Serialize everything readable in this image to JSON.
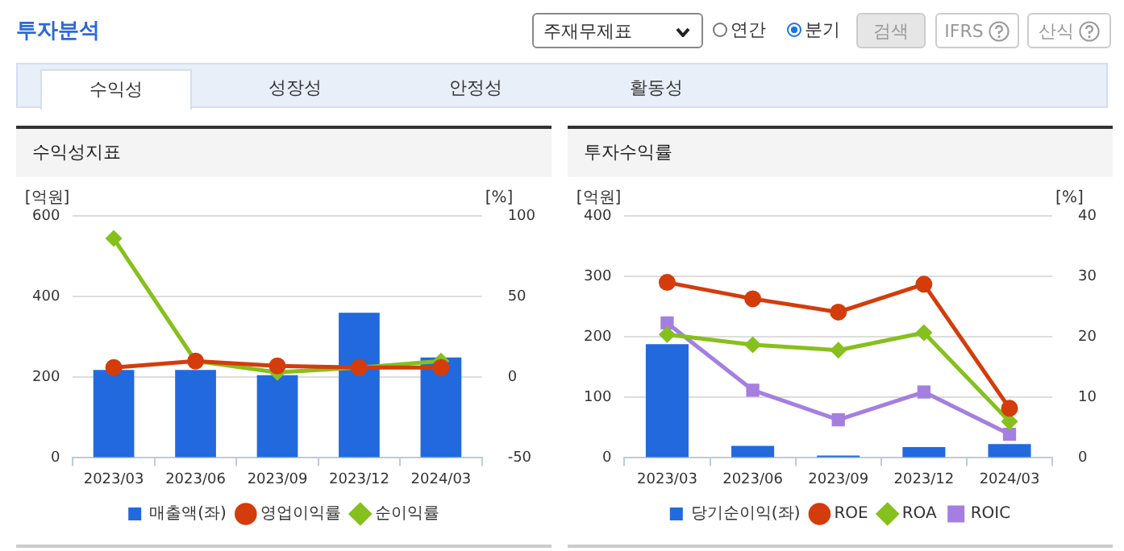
{
  "chart_data": [
    {
      "type": "other",
      "title": "투자분석",
      "annotations": [
        "주재무제표",
        "연간",
        "분기",
        "검색",
        "IFRS",
        "산식",
        "수익성",
        "성장성",
        "안정성",
        "활동성"
      ]
    },
    {
      "type": "bar",
      "title": "수익성지표",
      "ylabel": "[억원]",
      "y2label": "[%]",
      "categories": [
        "2023/03",
        "2023/06",
        "2023/09",
        "2023/12",
        "2024/03"
      ],
      "ylim": [
        0,
        600
      ],
      "yticks": [
        0,
        200,
        400,
        600
      ],
      "y2lim": [
        -50,
        100
      ],
      "y2ticks": [
        -50,
        0,
        50,
        100
      ],
      "grid": "y",
      "legend": "bottom",
      "series": [
        {
          "name": "매출액(좌)",
          "type": "bar",
          "color": "#2269dd",
          "values": [
            218,
            218,
            205,
            360,
            249
          ]
        },
        {
          "name": "영업이익률",
          "type": "line",
          "axis": "y2",
          "marker": "circle",
          "color": "#d43c0c",
          "values": [
            6,
            10,
            7,
            6,
            6
          ]
        },
        {
          "name": "순이익률",
          "type": "line",
          "axis": "y2",
          "marker": "diamond",
          "color": "#86c01c",
          "values": [
            86,
            10,
            3,
            6,
            10
          ]
        }
      ]
    },
    {
      "type": "bar",
      "title": "투자수익률",
      "ylabel": "[억원]",
      "y2label": "[%]",
      "categories": [
        "2023/03",
        "2023/06",
        "2023/09",
        "2023/12",
        "2024/03"
      ],
      "ylim": [
        0,
        400
      ],
      "yticks": [
        0,
        100,
        200,
        300,
        400
      ],
      "y2lim": [
        0,
        40
      ],
      "y2ticks": [
        0,
        10,
        20,
        30,
        40
      ],
      "grid": "y",
      "legend": "bottom",
      "series": [
        {
          "name": "당기순이익(좌)",
          "type": "bar",
          "color": "#2269dd",
          "values": [
            188,
            20,
            4,
            18,
            23
          ]
        },
        {
          "name": "ROE",
          "type": "line",
          "axis": "y2",
          "marker": "circle",
          "color": "#d43c0c",
          "values": [
            29,
            26.3,
            24.1,
            28.7,
            8.2
          ]
        },
        {
          "name": "ROA",
          "type": "line",
          "axis": "y2",
          "marker": "diamond",
          "color": "#86c01c",
          "values": [
            20.4,
            18.7,
            17.8,
            20.7,
            6
          ]
        },
        {
          "name": "ROIC",
          "type": "line",
          "axis": "y2",
          "marker": "square",
          "color": "#a47fe0",
          "values": [
            22.3,
            11.2,
            6.3,
            10.9,
            3.9
          ]
        }
      ]
    }
  ]
}
